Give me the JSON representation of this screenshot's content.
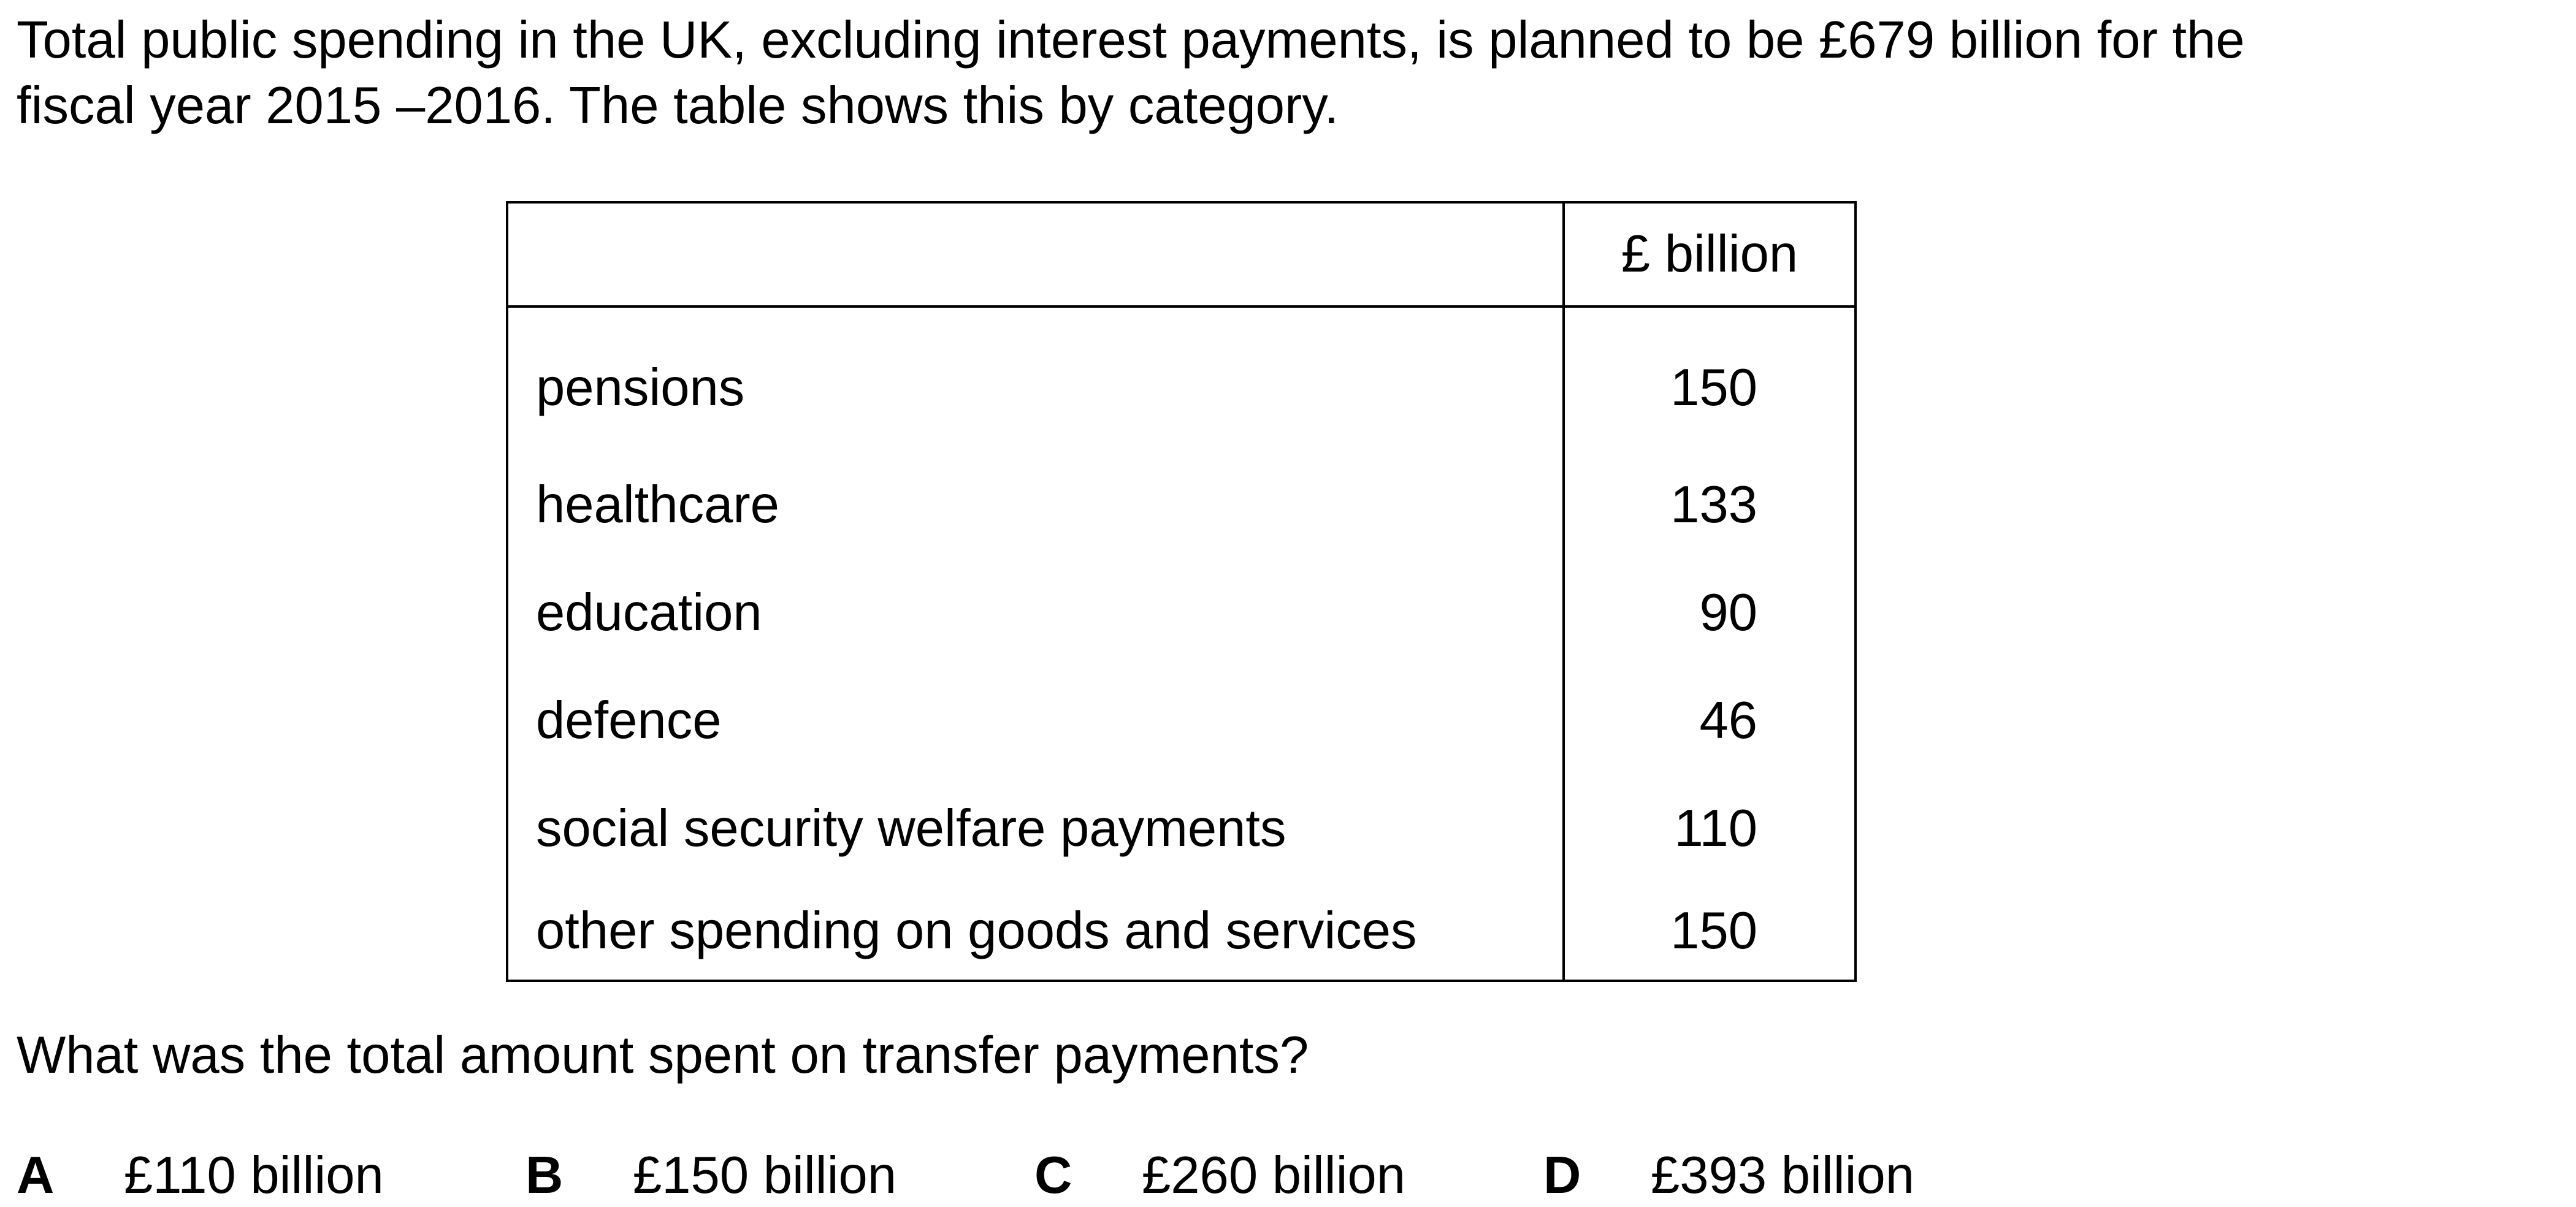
{
  "intro": {
    "line1": "Total public spending in the UK, excluding interest payments, is planned to be £679 billion for the",
    "line2": "fiscal year 2015 –2016. The table shows this by category."
  },
  "table": {
    "header_category": "",
    "header_unit": "£ billion",
    "rows": [
      {
        "category": "pensions",
        "value": "150"
      },
      {
        "category": "healthcare",
        "value": "133"
      },
      {
        "category": "education",
        "value": "90"
      },
      {
        "category": "defence",
        "value": "46"
      },
      {
        "category": "social security welfare payments",
        "value": "110"
      },
      {
        "category": "other spending on goods and services",
        "value": "150"
      }
    ]
  },
  "question": "What was the total amount spent on transfer payments?",
  "options": [
    {
      "letter": "A",
      "text": "£110 billion"
    },
    {
      "letter": "B",
      "text": "£150 billion"
    },
    {
      "letter": "C",
      "text": "£260 billion"
    },
    {
      "letter": "D",
      "text": "£393 billion"
    }
  ]
}
